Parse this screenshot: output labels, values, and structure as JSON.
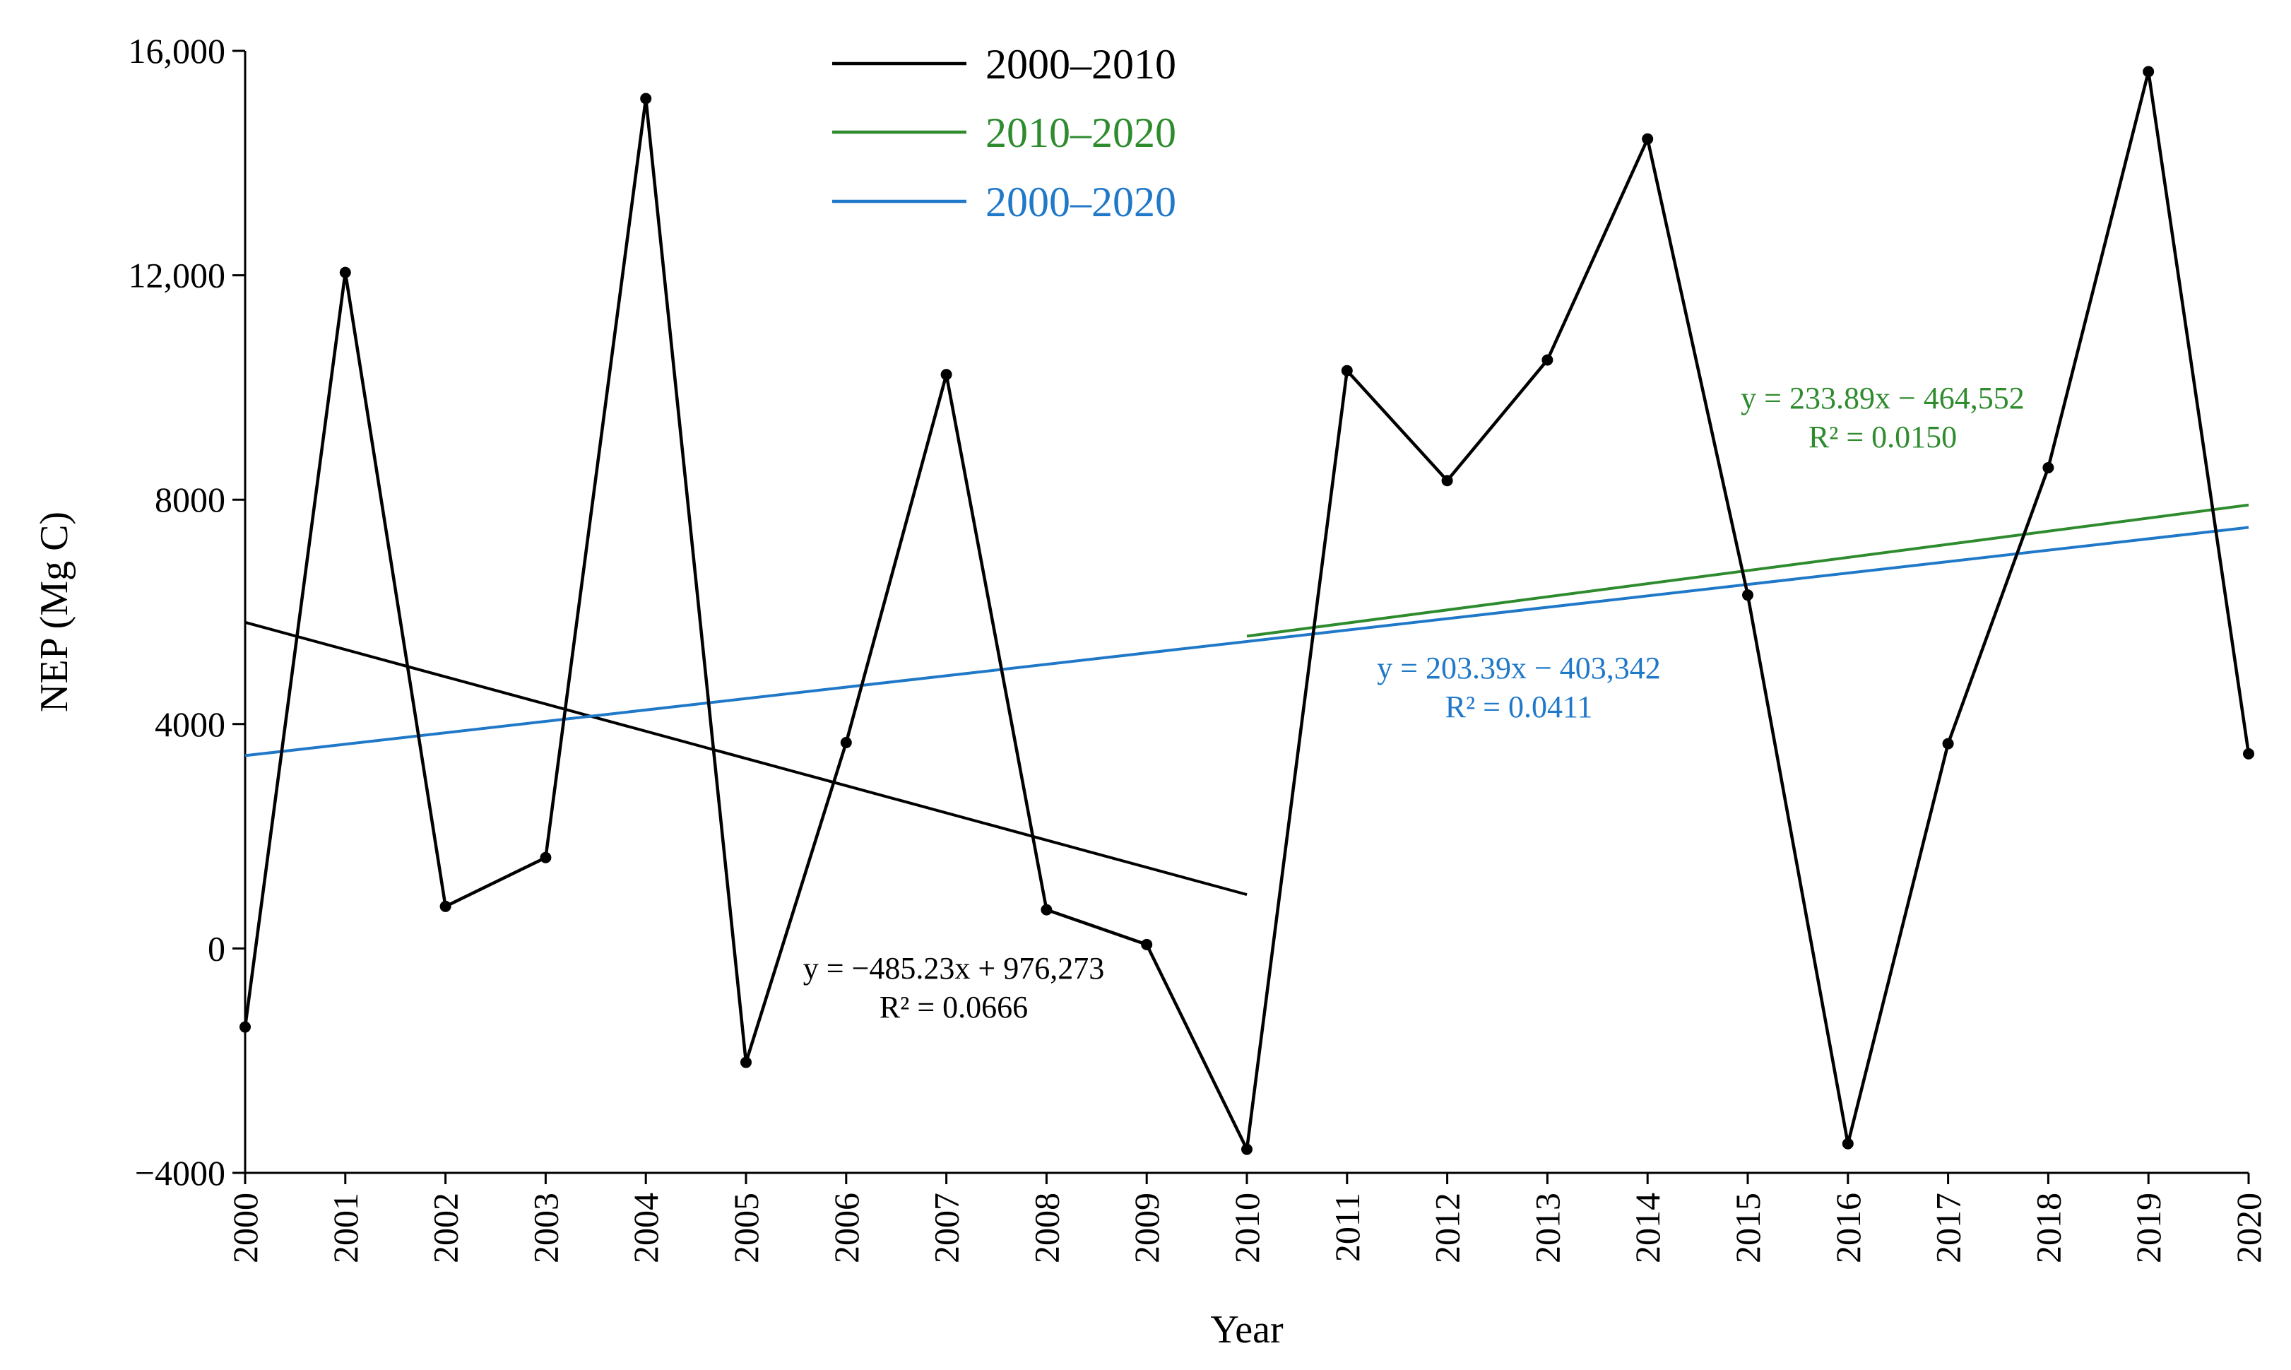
{
  "chart_data": {
    "type": "line",
    "title": "",
    "xlabel": "Year",
    "ylabel": "NEP (Mg C)",
    "xlim": [
      2000,
      2020
    ],
    "ylim": [
      -4000,
      16000
    ],
    "yticks": [
      -4000,
      0,
      4000,
      8000,
      12000,
      16000
    ],
    "ytick_labels": [
      "−4000",
      "0",
      "4000",
      "8000",
      "12,000",
      "16,000"
    ],
    "x": [
      2000,
      2001,
      2002,
      2003,
      2004,
      2005,
      2006,
      2007,
      2008,
      2009,
      2010,
      2011,
      2012,
      2013,
      2014,
      2015,
      2016,
      2017,
      2018,
      2019,
      2020
    ],
    "x_tick_labels": [
      "2000",
      "2001",
      "2002",
      "2003",
      "2004",
      "2005",
      "2006",
      "2007",
      "2008",
      "2009",
      "2010",
      "2011",
      "2012",
      "2013",
      "2014",
      "2015",
      "2016",
      "2017",
      "2018",
      "2019",
      "2020"
    ],
    "series": [
      {
        "name": "NEP",
        "color": "#000000",
        "values": [
          -1400,
          12050,
          750,
          1620,
          15150,
          -2030,
          3670,
          10230,
          690,
          70,
          -3580,
          10300,
          8340,
          10490,
          14430,
          6300,
          -3480,
          3650,
          8570,
          15630,
          3470
        ]
      }
    ],
    "trendlines": [
      {
        "name": "2000–2010",
        "color": "#000000",
        "x_range": [
          2000,
          2010
        ],
        "slope": -485.23,
        "intercept": 976273,
        "equation": "y = −485.23x + 976,273",
        "r2": "R² = 0.0666",
        "label_pos": "lower-middle"
      },
      {
        "name": "2010–2020",
        "color": "#2e8b2e",
        "x_range": [
          2010,
          2020
        ],
        "slope": 233.89,
        "intercept": -464552,
        "equation": "y = 233.89x − 464,552",
        "r2": "R² = 0.0150",
        "label_pos": "upper-right"
      },
      {
        "name": "2000–2020",
        "color": "#1f78c8",
        "x_range": [
          2000,
          2020
        ],
        "slope": 203.39,
        "intercept": -403342,
        "equation": "y = 203.39x − 403,342",
        "r2": "R² = 0.0411",
        "label_pos": "center-right"
      }
    ],
    "legend": {
      "placement": "top-center",
      "entries": [
        {
          "label": "2000–2010",
          "color": "#000000"
        },
        {
          "label": "2010–2020",
          "color": "#2e8b2e"
        },
        {
          "label": "2000–2020",
          "color": "#1f78c8"
        }
      ]
    },
    "grid": false
  }
}
